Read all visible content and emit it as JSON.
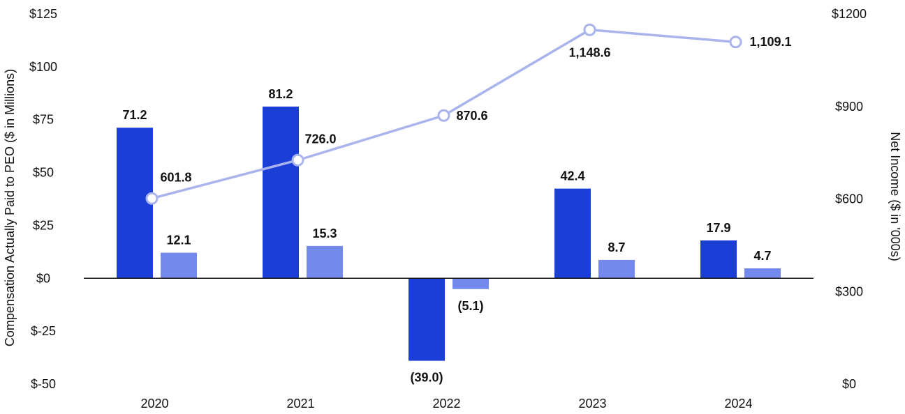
{
  "chart_data": {
    "type": "bar+line",
    "title": "",
    "categories": [
      "2020",
      "2021",
      "2022",
      "2023",
      "2024"
    ],
    "left_axis": {
      "label": "Compensation Actually Paid to PEO ($ in Millions)",
      "range": [
        -50,
        125
      ],
      "ticks": [
        {
          "value": 125,
          "label": "$125"
        },
        {
          "value": 100,
          "label": "$100"
        },
        {
          "value": 75,
          "label": "$75"
        },
        {
          "value": 50,
          "label": "$50"
        },
        {
          "value": 25,
          "label": "$25"
        },
        {
          "value": 0,
          "label": "$0"
        },
        {
          "value": -25,
          "label": "$-25"
        },
        {
          "value": -50,
          "label": "$-50"
        }
      ]
    },
    "right_axis": {
      "label": "Net Income ($ in '000s)",
      "range": [
        0,
        1200
      ],
      "ticks": [
        {
          "value": 1200,
          "label": "$1200"
        },
        {
          "value": 900,
          "label": "$900"
        },
        {
          "value": 600,
          "label": "$600"
        },
        {
          "value": 300,
          "label": "$300"
        },
        {
          "value": 0,
          "label": "$0"
        }
      ]
    },
    "bar_series": [
      {
        "name": "series-1",
        "color": "#1a3ed6",
        "values": [
          71.2,
          81.2,
          -39.0,
          42.4,
          17.9
        ],
        "labels": [
          "71.2",
          "81.2",
          "(39.0)",
          "42.4",
          "17.9"
        ]
      },
      {
        "name": "series-2",
        "color": "#7389ec",
        "values": [
          12.1,
          15.3,
          -5.1,
          8.7,
          4.7
        ],
        "labels": [
          "12.1",
          "15.3",
          "(5.1)",
          "8.7",
          "4.7"
        ]
      }
    ],
    "line_series": {
      "name": "net-income",
      "color": "#a9b4ec",
      "values": [
        601.8,
        726.0,
        870.6,
        1148.6,
        1109.1
      ],
      "labels": [
        "601.8",
        "726.0",
        "870.6",
        "1,148.6",
        "1,109.1"
      ]
    },
    "zero_line_color": "#111111",
    "grid": false,
    "legend": "none"
  }
}
